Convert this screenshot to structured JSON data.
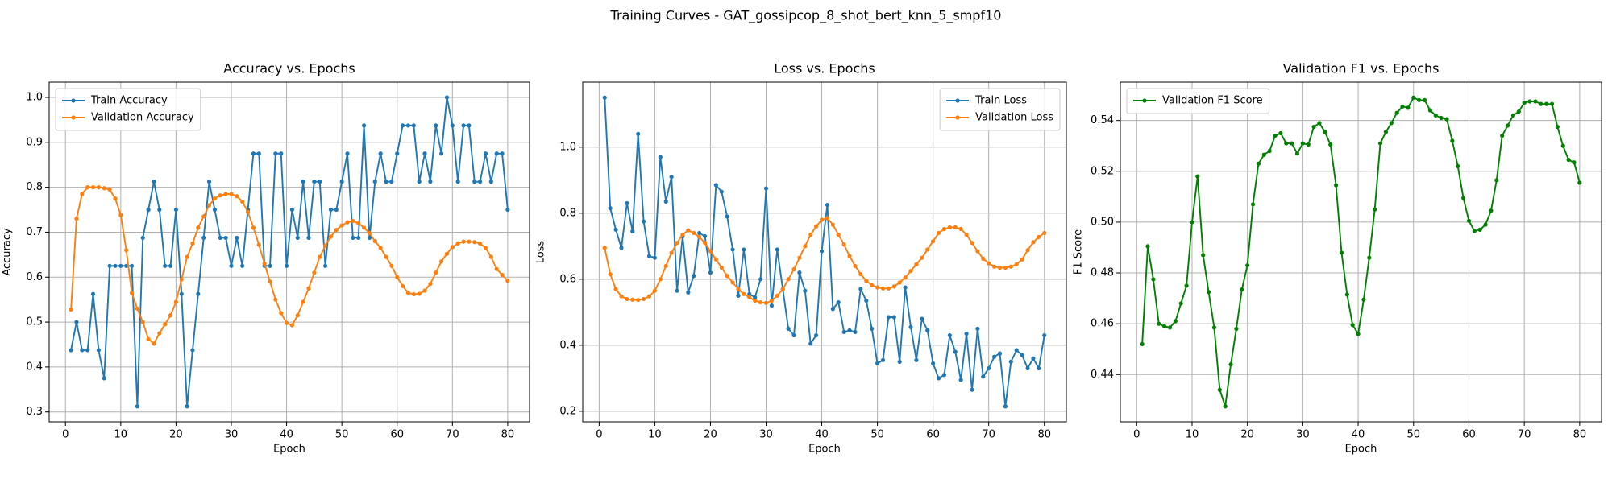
{
  "title": "Training Curves - GAT_gossipcop_8_shot_bert_knn_5_smpf10",
  "chart_data": [
    {
      "type": "line",
      "title": "Accuracy vs. Epochs",
      "x_label": "Epoch",
      "y_label": "Accuracy",
      "x": [
        1,
        2,
        3,
        4,
        5,
        6,
        7,
        8,
        9,
        10,
        11,
        12,
        13,
        14,
        15,
        16,
        17,
        18,
        19,
        20,
        21,
        22,
        23,
        24,
        25,
        26,
        27,
        28,
        29,
        30,
        31,
        32,
        33,
        34,
        35,
        36,
        37,
        38,
        39,
        40,
        41,
        42,
        43,
        44,
        45,
        46,
        47,
        48,
        49,
        50,
        51,
        52,
        53,
        54,
        55,
        56,
        57,
        58,
        59,
        60,
        61,
        62,
        63,
        64,
        65,
        66,
        67,
        68,
        69,
        70,
        71,
        72,
        73,
        74,
        75,
        76,
        77,
        78,
        79,
        80
      ],
      "series": [
        {
          "name": "Train Accuracy",
          "color": "#1f77b4",
          "values": [
            0.4375,
            0.5,
            0.4375,
            0.4375,
            0.5625,
            0.4375,
            0.375,
            0.625,
            0.625,
            0.625,
            0.625,
            0.625,
            0.3125,
            0.6875,
            0.75,
            0.8125,
            0.75,
            0.625,
            0.625,
            0.75,
            0.5625,
            0.3125,
            0.4375,
            0.5625,
            0.6875,
            0.8125,
            0.75,
            0.6875,
            0.6875,
            0.625,
            0.6875,
            0.625,
            0.75,
            0.875,
            0.875,
            0.625,
            0.625,
            0.875,
            0.875,
            0.625,
            0.75,
            0.6875,
            0.8125,
            0.6875,
            0.8125,
            0.8125,
            0.625,
            0.75,
            0.75,
            0.8125,
            0.875,
            0.6875,
            0.6875,
            0.9375,
            0.6875,
            0.8125,
            0.875,
            0.8125,
            0.8125,
            0.875,
            0.9375,
            0.9375,
            0.9375,
            0.8125,
            0.875,
            0.8125,
            0.9375,
            0.875,
            1.0,
            0.9375,
            0.8125,
            0.9375,
            0.9375,
            0.8125,
            0.8125,
            0.875,
            0.8125,
            0.875,
            0.875,
            0.75
          ]
        },
        {
          "name": "Validation Accuracy",
          "color": "#ff7f0e",
          "values": [
            0.528,
            0.73,
            0.785,
            0.8,
            0.8,
            0.8,
            0.798,
            0.795,
            0.775,
            0.738,
            0.66,
            0.565,
            0.53,
            0.5,
            0.462,
            0.452,
            0.475,
            0.495,
            0.515,
            0.545,
            0.595,
            0.645,
            0.675,
            0.71,
            0.735,
            0.76,
            0.775,
            0.782,
            0.785,
            0.785,
            0.78,
            0.768,
            0.745,
            0.71,
            0.672,
            0.63,
            0.59,
            0.55,
            0.52,
            0.498,
            0.493,
            0.515,
            0.545,
            0.575,
            0.61,
            0.645,
            0.67,
            0.69,
            0.705,
            0.715,
            0.722,
            0.725,
            0.72,
            0.71,
            0.698,
            0.68,
            0.665,
            0.645,
            0.625,
            0.6,
            0.58,
            0.565,
            0.562,
            0.563,
            0.57,
            0.585,
            0.61,
            0.635,
            0.652,
            0.667,
            0.675,
            0.679,
            0.679,
            0.678,
            0.675,
            0.665,
            0.645,
            0.618,
            0.605,
            0.592
          ]
        }
      ],
      "xlim": [
        -2.95,
        83.95
      ],
      "xticks": [
        0,
        10,
        20,
        30,
        40,
        50,
        60,
        70,
        80
      ],
      "ylim": [
        0.278,
        1.034
      ],
      "yticks": [
        0.3,
        0.4,
        0.5,
        0.6,
        0.7,
        0.8,
        0.9,
        {
          "value": 1,
          "label": "1.0"
        }
      ],
      "grid": true,
      "legend": "upper left"
    },
    {
      "type": "line",
      "title": "Loss vs. Epochs",
      "x_label": "Epoch",
      "y_label": "Loss",
      "x": [
        1,
        2,
        3,
        4,
        5,
        6,
        7,
        8,
        9,
        10,
        11,
        12,
        13,
        14,
        15,
        16,
        17,
        18,
        19,
        20,
        21,
        22,
        23,
        24,
        25,
        26,
        27,
        28,
        29,
        30,
        31,
        32,
        33,
        34,
        35,
        36,
        37,
        38,
        39,
        40,
        41,
        42,
        43,
        44,
        45,
        46,
        47,
        48,
        49,
        50,
        51,
        52,
        53,
        54,
        55,
        56,
        57,
        58,
        59,
        60,
        61,
        62,
        63,
        64,
        65,
        66,
        67,
        68,
        69,
        70,
        71,
        72,
        73,
        74,
        75,
        76,
        77,
        78,
        79,
        80
      ],
      "series": [
        {
          "name": "Train Loss",
          "color": "#1f77b4",
          "values": [
            1.15,
            0.815,
            0.75,
            0.695,
            0.83,
            0.745,
            1.04,
            0.775,
            0.67,
            0.665,
            0.97,
            0.835,
            0.91,
            0.565,
            0.73,
            0.56,
            0.61,
            0.74,
            0.73,
            0.62,
            0.885,
            0.865,
            0.79,
            0.69,
            0.55,
            0.69,
            0.555,
            0.545,
            0.6,
            0.875,
            0.52,
            0.69,
            0.57,
            0.45,
            0.43,
            0.62,
            0.565,
            0.405,
            0.43,
            0.685,
            0.825,
            0.51,
            0.53,
            0.44,
            0.445,
            0.44,
            0.57,
            0.535,
            0.45,
            0.345,
            0.355,
            0.485,
            0.485,
            0.35,
            0.575,
            0.455,
            0.355,
            0.48,
            0.445,
            0.345,
            0.3,
            0.31,
            0.43,
            0.38,
            0.295,
            0.435,
            0.265,
            0.45,
            0.305,
            0.33,
            0.365,
            0.375,
            0.215,
            0.35,
            0.385,
            0.37,
            0.33,
            0.36,
            0.33,
            0.43
          ]
        },
        {
          "name": "Validation Loss",
          "color": "#ff7f0e",
          "values": [
            0.695,
            0.615,
            0.57,
            0.548,
            0.54,
            0.538,
            0.537,
            0.54,
            0.548,
            0.565,
            0.6,
            0.64,
            0.68,
            0.71,
            0.735,
            0.748,
            0.74,
            0.728,
            0.71,
            0.685,
            0.66,
            0.635,
            0.61,
            0.59,
            0.57,
            0.555,
            0.545,
            0.535,
            0.53,
            0.528,
            0.535,
            0.55,
            0.57,
            0.6,
            0.63,
            0.665,
            0.7,
            0.735,
            0.76,
            0.78,
            0.785,
            0.765,
            0.735,
            0.705,
            0.67,
            0.64,
            0.615,
            0.595,
            0.582,
            0.575,
            0.572,
            0.572,
            0.578,
            0.59,
            0.605,
            0.625,
            0.645,
            0.665,
            0.69,
            0.715,
            0.74,
            0.752,
            0.757,
            0.757,
            0.752,
            0.735,
            0.71,
            0.685,
            0.662,
            0.648,
            0.638,
            0.635,
            0.635,
            0.638,
            0.645,
            0.66,
            0.688,
            0.712,
            0.728,
            0.74
          ]
        }
      ],
      "xlim": [
        -2.95,
        83.95
      ],
      "xticks": [
        0,
        10,
        20,
        30,
        40,
        50,
        60,
        70,
        80
      ],
      "ylim": [
        0.168,
        1.197
      ],
      "yticks": [
        0.2,
        0.4,
        0.6,
        0.8,
        {
          "value": 1,
          "label": "1.0"
        }
      ],
      "grid": true,
      "legend": "upper right"
    },
    {
      "type": "line",
      "title": "Validation F1 vs. Epochs",
      "x_label": "Epoch",
      "y_label": "F1 Score",
      "x": [
        1,
        2,
        3,
        4,
        5,
        6,
        7,
        8,
        9,
        10,
        11,
        12,
        13,
        14,
        15,
        16,
        17,
        18,
        19,
        20,
        21,
        22,
        23,
        24,
        25,
        26,
        27,
        28,
        29,
        30,
        31,
        32,
        33,
        34,
        35,
        36,
        37,
        38,
        39,
        40,
        41,
        42,
        43,
        44,
        45,
        46,
        47,
        48,
        49,
        50,
        51,
        52,
        53,
        54,
        55,
        56,
        57,
        58,
        59,
        60,
        61,
        62,
        63,
        64,
        65,
        66,
        67,
        68,
        69,
        70,
        71,
        72,
        73,
        74,
        75,
        76,
        77,
        78,
        79,
        80
      ],
      "series": [
        {
          "name": "Validation F1 Score",
          "color": "#008000",
          "values": [
            0.452,
            0.4905,
            0.4775,
            0.46,
            0.459,
            0.4585,
            0.461,
            0.468,
            0.475,
            0.5,
            0.518,
            0.487,
            0.4725,
            0.4585,
            0.434,
            0.4275,
            0.444,
            0.458,
            0.4735,
            0.483,
            0.507,
            0.523,
            0.5265,
            0.528,
            0.534,
            0.535,
            0.531,
            0.531,
            0.527,
            0.531,
            0.5305,
            0.5375,
            0.539,
            0.5355,
            0.5305,
            0.5145,
            0.488,
            0.4715,
            0.4595,
            0.456,
            0.4695,
            0.486,
            0.505,
            0.531,
            0.5355,
            0.539,
            0.543,
            0.5455,
            0.545,
            0.549,
            0.548,
            0.548,
            0.544,
            0.542,
            0.541,
            0.5405,
            0.532,
            0.522,
            0.5095,
            0.5005,
            0.4965,
            0.497,
            0.499,
            0.5045,
            0.5165,
            0.534,
            0.538,
            0.542,
            0.5435,
            0.547,
            0.5475,
            0.5475,
            0.5465,
            0.5465,
            0.5465,
            0.5375,
            0.53,
            0.5245,
            0.5235,
            0.5155
          ]
        }
      ],
      "xlim": [
        -2.95,
        83.95
      ],
      "xticks": [
        0,
        10,
        20,
        30,
        40,
        50,
        60,
        70,
        80
      ],
      "ylim": [
        0.4214,
        0.5551
      ],
      "yticks": [
        0.44,
        0.46,
        0.48,
        {
          "value": 0.5,
          "label": "0.50"
        },
        0.52,
        0.54
      ],
      "grid": true,
      "legend": "upper left"
    }
  ]
}
